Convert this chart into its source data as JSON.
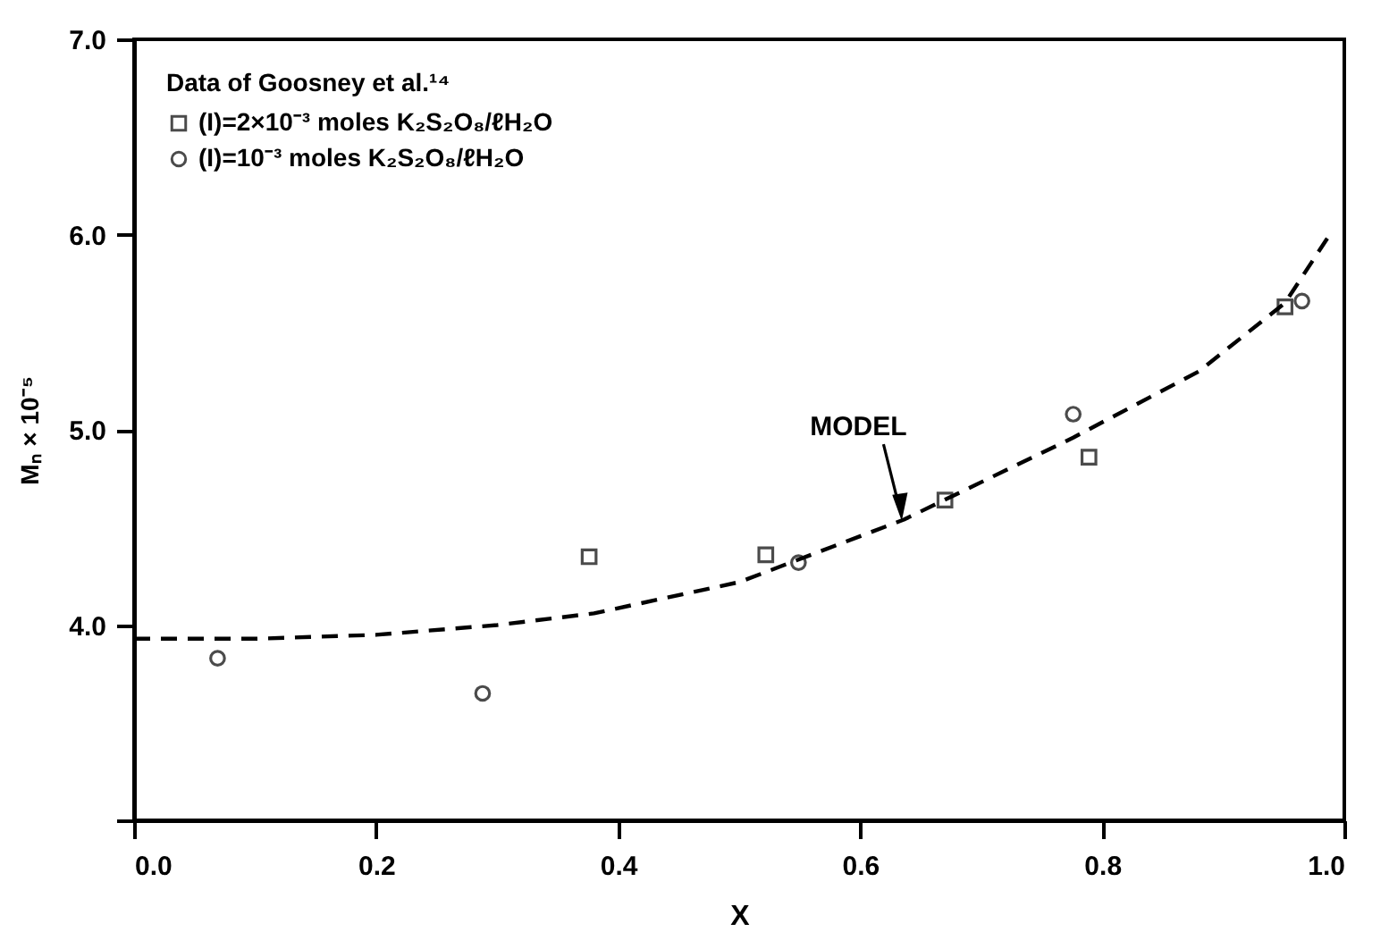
{
  "chart_data": {
    "type": "scatter",
    "xlabel": "X",
    "ylabel": "Mₙ × 10⁻⁵",
    "legend_title": "Data  of Goosney et al.¹⁴",
    "xlim": [
      0.0,
      1.0
    ],
    "xticks": [
      {
        "value": 0.0,
        "label": "0.0"
      },
      {
        "value": 0.2,
        "label": "0.2"
      },
      {
        "value": 0.4,
        "label": "0.4"
      },
      {
        "value": 0.6,
        "label": "0.6"
      },
      {
        "value": 0.8,
        "label": "0.8"
      },
      {
        "value": 1.0,
        "label": "1.0"
      }
    ],
    "ylim": [
      3.0,
      7.0
    ],
    "yticks": [
      {
        "value": 3.0,
        "label": null
      },
      {
        "value": 4.0,
        "label": "4.0"
      },
      {
        "value": 5.0,
        "label": "5.0"
      },
      {
        "value": 6.0,
        "label": "6.0"
      },
      {
        "value": 7.0,
        "label": "7.0"
      }
    ],
    "grid": false,
    "legend": "top left",
    "series": [
      {
        "name": "(I)=2×10⁻³ moles K₂S₂O₈/ℓH₂O",
        "color": "#000000",
        "marker": "square",
        "x": [
          0.376,
          0.522,
          0.67,
          0.789,
          0.951
        ],
        "values": [
          4.35,
          4.36,
          4.64,
          4.86,
          5.63
        ]
      },
      {
        "name": "(I)=10⁻³ moles K₂S₂O₈/ℓH₂O",
        "color": "#000000",
        "marker": "circle",
        "x": [
          0.069,
          0.288,
          0.549,
          0.776,
          0.965
        ],
        "values": [
          3.83,
          3.65,
          4.32,
          5.08,
          5.66
        ]
      },
      {
        "type": "line",
        "line_style": "dashed",
        "marker": "none",
        "color": "#000000",
        "x": [
          0.0,
          0.1,
          0.2,
          0.3,
          0.38,
          0.5,
          0.636,
          0.776,
          0.88,
          0.951,
          0.988
        ],
        "values": [
          3.93,
          3.93,
          3.95,
          4.0,
          4.06,
          4.22,
          4.54,
          4.96,
          5.3,
          5.65,
          6.0
        ]
      }
    ],
    "annotations": [
      {
        "text": "MODEL",
        "x": 0.634,
        "y": 4.56
      }
    ]
  }
}
